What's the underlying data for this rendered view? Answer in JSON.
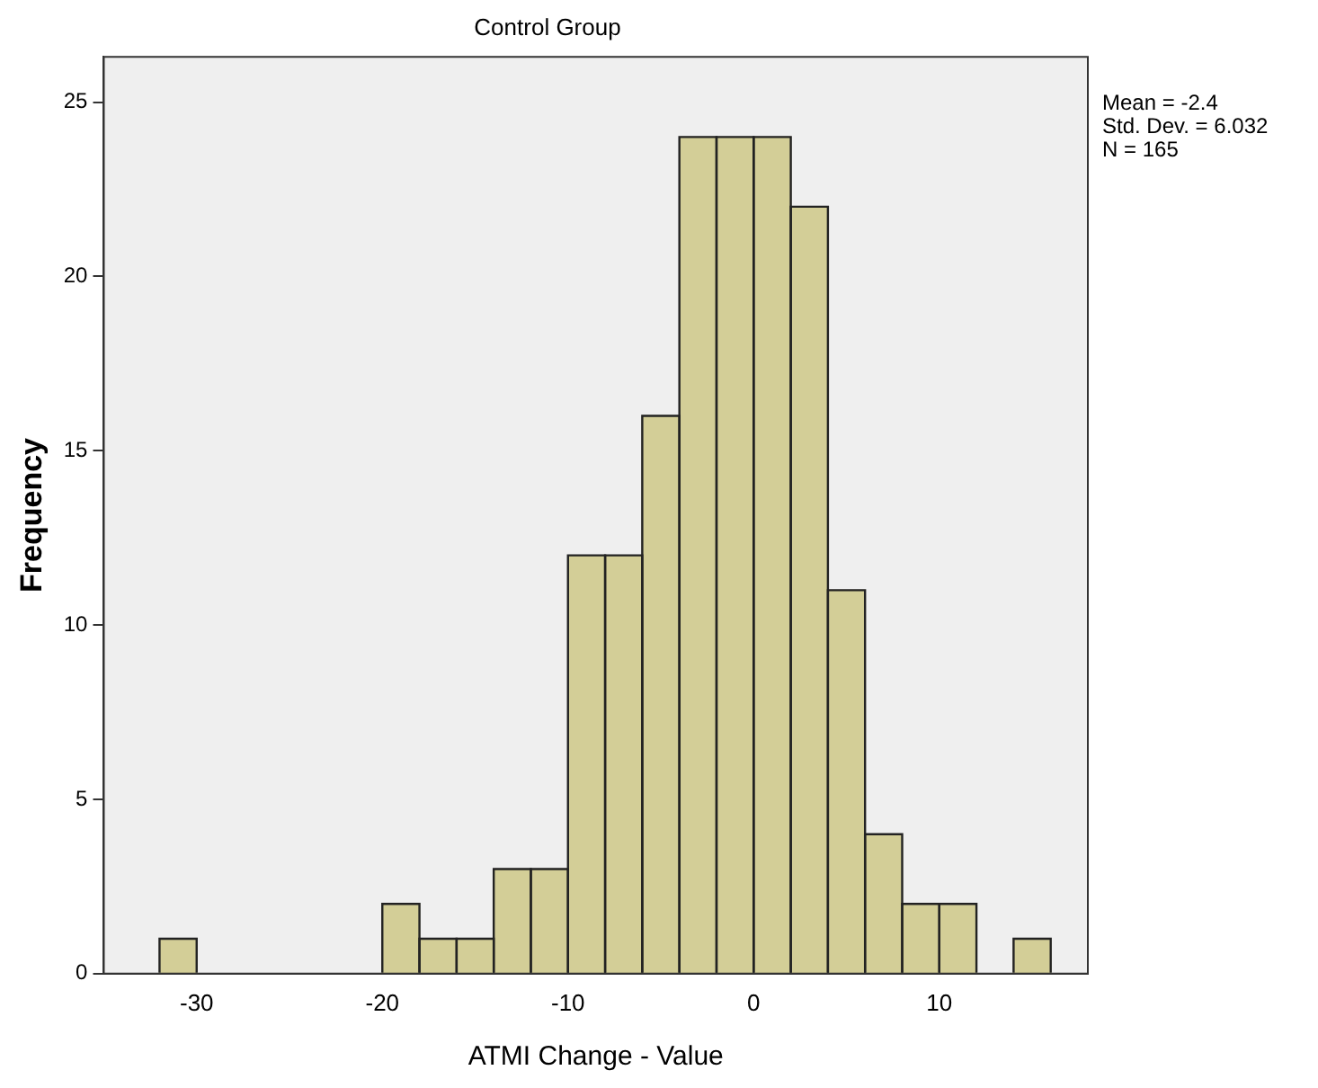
{
  "chart_data": {
    "type": "histogram",
    "title": "Control Group",
    "xlabel": "ATMI Change - Value",
    "ylabel": "Frequency",
    "bins": [
      -32,
      -30,
      -28,
      -26,
      -24,
      -22,
      -20,
      -18,
      -16,
      -14,
      -12,
      -10,
      -8,
      -6,
      -4,
      -2,
      0,
      2,
      4,
      6,
      8,
      10,
      12,
      14,
      16
    ],
    "values": [
      1,
      0,
      0,
      0,
      0,
      0,
      2,
      1,
      1,
      3,
      3,
      12,
      12,
      16,
      24,
      24,
      24,
      22,
      11,
      4,
      2,
      2,
      0,
      1
    ],
    "color": "#d3ce97",
    "xlim": [
      -35,
      18
    ],
    "xticks": [
      -30,
      -20,
      -10,
      0,
      10
    ],
    "ylim": [
      0,
      26.3
    ],
    "yticks": [
      0,
      5,
      10,
      15,
      20,
      25
    ],
    "grid": false,
    "legend": false,
    "annotations": [
      "Mean = -2.4",
      "Std. Dev. = 6.032",
      "N = 165"
    ]
  }
}
